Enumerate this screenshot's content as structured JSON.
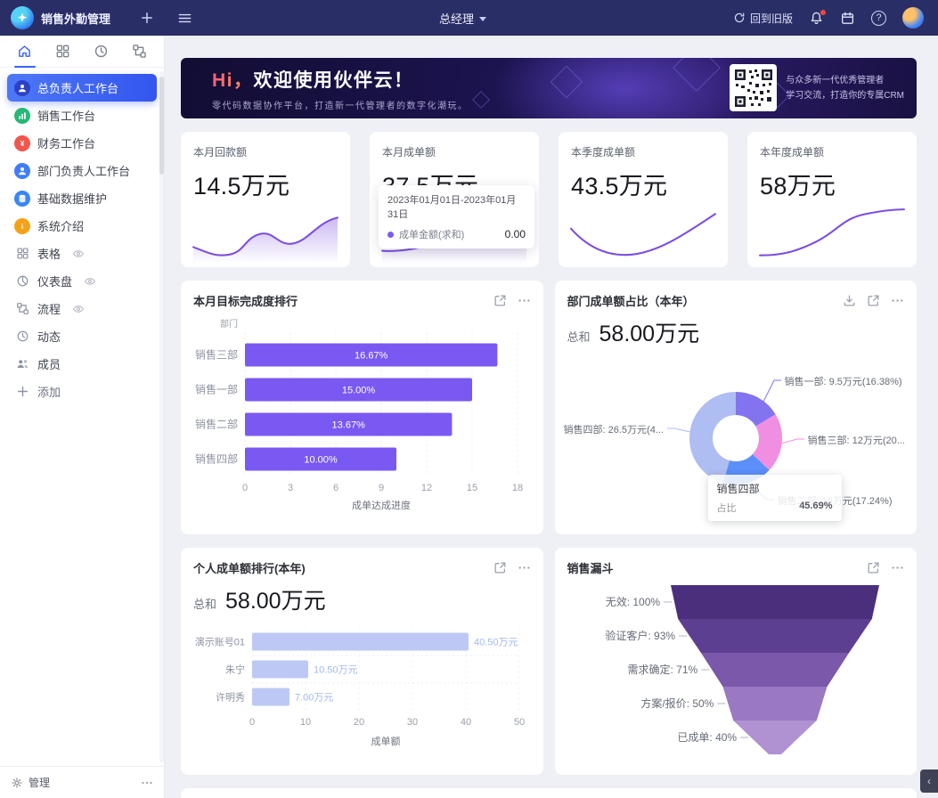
{
  "topbar": {
    "app_title": "销售外勤管理",
    "role": "总经理",
    "back_old": "回到旧版",
    "help": "?"
  },
  "sidebar": {
    "tabs": [
      {
        "icon": "home",
        "active": true
      },
      {
        "icon": "grid",
        "active": false
      },
      {
        "icon": "clock",
        "active": false
      },
      {
        "icon": "flow",
        "active": false
      }
    ],
    "items": [
      {
        "label": "总负责人工作台",
        "icon": "person",
        "color": "#2b41c8",
        "active": true
      },
      {
        "label": "销售工作台",
        "icon": "chart",
        "color": "#27b877"
      },
      {
        "label": "财务工作台",
        "icon": "yen",
        "color": "#f2564d"
      },
      {
        "label": "部门负责人工作台",
        "icon": "person",
        "color": "#3f7ef7"
      },
      {
        "label": "基础数据维护",
        "icon": "db",
        "color": "#3a86f5"
      },
      {
        "label": "系统介绍",
        "icon": "info",
        "color": "#f5a11a"
      },
      {
        "label": "表格",
        "icon": "grid",
        "eye": true
      },
      {
        "label": "仪表盘",
        "icon": "gauge",
        "eye": true
      },
      {
        "label": "流程",
        "icon": "flow",
        "eye": true
      },
      {
        "label": "动态",
        "icon": "clock"
      },
      {
        "label": "成员",
        "icon": "people"
      },
      {
        "label": "添加",
        "icon": "plus",
        "add": true
      }
    ],
    "footer_manage": "管理"
  },
  "banner": {
    "title_highlight": "Hi，",
    "title_rest": "欢迎使用伙伴云！",
    "subtitle": "零代码数据协作平台，打造新一代管理者的数字化潮玩。",
    "qr_caption_line1": "与众多新一代优秀管理者",
    "qr_caption_line2": "学习交流，打造你的专属CRM"
  },
  "stat_cards": [
    {
      "label": "本月回款额",
      "value": "14.5万元"
    },
    {
      "label": "本月成单额",
      "value": "37.5万元",
      "tooltip": {
        "range": "2023年01月01日-2023年01月31日",
        "series": "成单金额(求和)",
        "value": "0.00"
      }
    },
    {
      "label": "本季度成单额",
      "value": "43.5万元"
    },
    {
      "label": "本年度成单额",
      "value": "58万元"
    }
  ],
  "chart_data": [
    {
      "id": "monthly_target_rank",
      "type": "bar",
      "orientation": "horizontal",
      "title": "本月目标完成度排行",
      "ylabel": "部门",
      "xlabel": "成单达成进度",
      "categories": [
        "销售三部",
        "销售一部",
        "销售二部",
        "销售四部"
      ],
      "values": [
        16.67,
        15.0,
        13.67,
        10.0
      ],
      "value_labels": [
        "16.67%",
        "15.00%",
        "13.67%",
        "10.00%"
      ],
      "xlim": [
        0,
        18
      ],
      "xticks": [
        0,
        3,
        6,
        9,
        12,
        15,
        18
      ],
      "bar_color": "#7a58f2",
      "actions": [
        "expand",
        "more"
      ]
    },
    {
      "id": "dept_share_pie",
      "type": "pie",
      "title": "部门成单额占比（本年）",
      "total_label": "总和",
      "total_value": "58.00万元",
      "slices": [
        {
          "name": "销售一部",
          "value": 9.5,
          "pct": 16.38,
          "label": "销售一部: 9.5万元(16.38%)",
          "color": "#8273ee"
        },
        {
          "name": "销售三部",
          "value": 12,
          "pct": 20.69,
          "label": "销售三部: 12万元(20...",
          "color": "#f08fe2"
        },
        {
          "name": "销售二部",
          "value": 10,
          "pct": 17.24,
          "label": "销售二部: 10万元(17.24%)",
          "color": "#5b8ff9"
        },
        {
          "name": "销售四部",
          "value": 26.5,
          "pct": 45.69,
          "label": "销售四部: 26.5万元(4...",
          "color": "#aebdf2"
        }
      ],
      "tooltip": {
        "name": "销售四部",
        "metric": "占比",
        "value": "45.69%"
      },
      "actions": [
        "download",
        "expand",
        "more"
      ]
    },
    {
      "id": "personal_rank",
      "type": "bar",
      "orientation": "horizontal",
      "title": "个人成单额排行(本年)",
      "total_label": "总和",
      "total_value": "58.00万元",
      "xlabel": "成单额",
      "categories": [
        "演示账号01",
        "朱宁",
        "许明秀"
      ],
      "values": [
        40.5,
        10.5,
        7.0
      ],
      "value_labels": [
        "40.50万元",
        "10.50万元",
        "7.00万元"
      ],
      "xlim": [
        0,
        50
      ],
      "xticks": [
        0,
        10,
        20,
        30,
        40,
        50
      ],
      "bar_color": "#bdc9f4",
      "value_label_color": "#a3b8f0",
      "actions": [
        "expand",
        "more"
      ]
    },
    {
      "id": "sales_funnel",
      "type": "funnel",
      "title": "销售漏斗",
      "stages": [
        {
          "label": "无效: 100%",
          "pct": 100,
          "color": "#4c2f7c"
        },
        {
          "label": "验证客户: 93%",
          "pct": 93,
          "color": "#5d3f92"
        },
        {
          "label": "需求确定: 71%",
          "pct": 71,
          "color": "#7b58aa"
        },
        {
          "label": "方案/报价: 50%",
          "pct": 50,
          "color": "#9a78c2"
        },
        {
          "label": "已成单: 40%",
          "pct": 40,
          "color": "#b092d3"
        }
      ],
      "actions": [
        "expand",
        "more"
      ]
    }
  ],
  "colors": {
    "accent_purple": "#7a58f2",
    "light_bar": "#bdc9f4",
    "topbar_bg": "#2a2e66",
    "active_menu_from": "#4d78f7",
    "active_menu_to": "#3355ee"
  }
}
